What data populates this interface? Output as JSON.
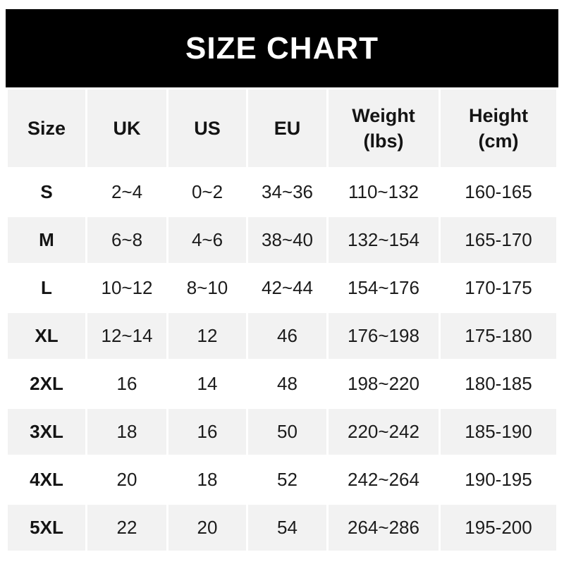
{
  "colors": {
    "banner_bg": "#000000",
    "banner_text": "#ffffff",
    "row_alt_bg": "#f2f2f2",
    "page_bg": "#ffffff",
    "text": "#1c1c1c"
  },
  "banner": {
    "title": "SIZE CHART"
  },
  "table": {
    "headers": [
      {
        "key": "size",
        "lines": [
          "Size"
        ]
      },
      {
        "key": "uk",
        "lines": [
          "UK"
        ]
      },
      {
        "key": "us",
        "lines": [
          "US"
        ]
      },
      {
        "key": "eu",
        "lines": [
          "EU"
        ]
      },
      {
        "key": "weight",
        "lines": [
          "Weight",
          "(lbs)"
        ]
      },
      {
        "key": "height",
        "lines": [
          "Height",
          "(cm)"
        ]
      }
    ],
    "column_keys": [
      "size",
      "uk",
      "us",
      "eu",
      "weight",
      "height"
    ],
    "rows": [
      [
        "S",
        "2~4",
        "0~2",
        "34~36",
        "110~132",
        "160-165"
      ],
      [
        "M",
        "6~8",
        "4~6",
        "38~40",
        "132~154",
        "165-170"
      ],
      [
        "L",
        "10~12",
        "8~10",
        "42~44",
        "154~176",
        "170-175"
      ],
      [
        "XL",
        "12~14",
        "12",
        "46",
        "176~198",
        "175-180"
      ],
      [
        "2XL",
        "16",
        "14",
        "48",
        "198~220",
        "180-185"
      ],
      [
        "3XL",
        "18",
        "16",
        "50",
        "220~242",
        "185-190"
      ],
      [
        "4XL",
        "20",
        "18",
        "52",
        "242~264",
        "190-195"
      ],
      [
        "5XL",
        "22",
        "20",
        "54",
        "264~286",
        "195-200"
      ]
    ]
  }
}
